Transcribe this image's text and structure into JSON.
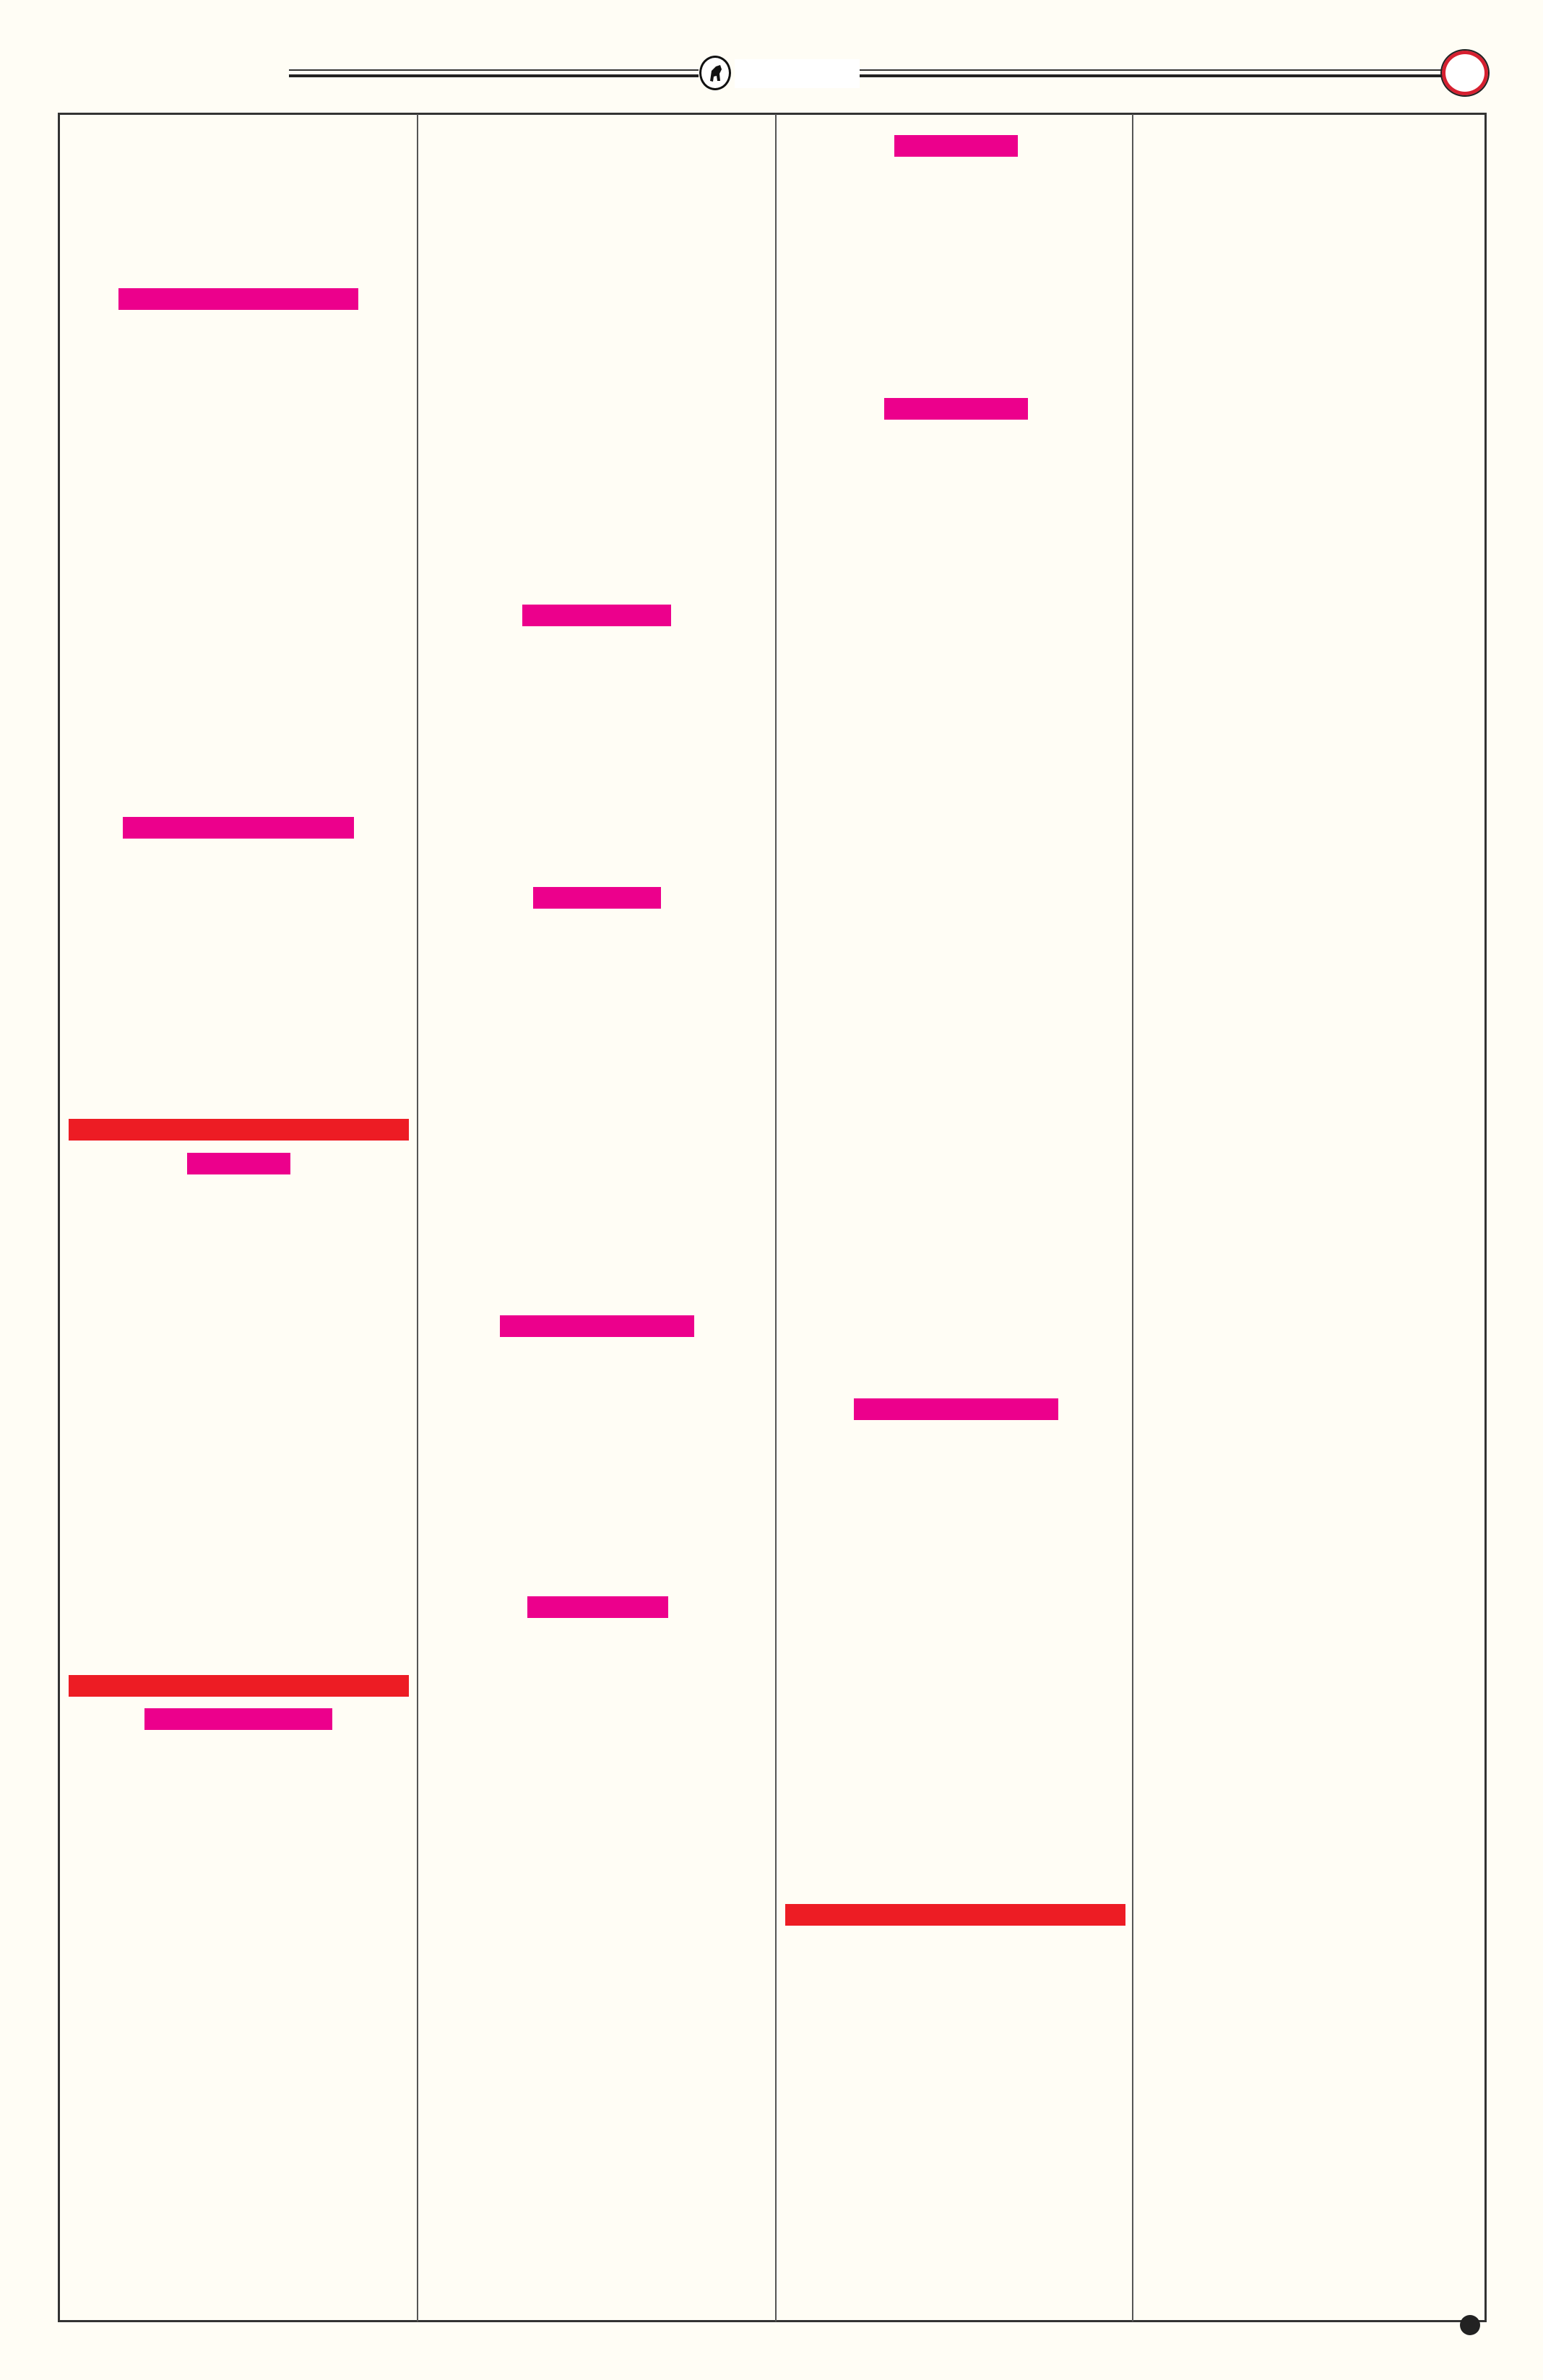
{
  "colors": {
    "background": "#fffdf5",
    "redaction_pink": "#ec008c",
    "redaction_red": "#ed1c24",
    "rule": "#222222"
  },
  "header": {
    "logo_icon": "bull-emblem-icon",
    "page_marker_icon": "red-ring-icon"
  },
  "columns": 4,
  "redactions": {
    "column_1": [
      "pink",
      "pink",
      "red",
      "pink",
      "red",
      "pink"
    ],
    "column_2": [
      "pink",
      "pink",
      "pink",
      "pink"
    ],
    "column_3": [
      "pink",
      "pink",
      "pink",
      "red"
    ],
    "column_4": []
  },
  "footer": {
    "marker_icon": "dot-icon"
  }
}
